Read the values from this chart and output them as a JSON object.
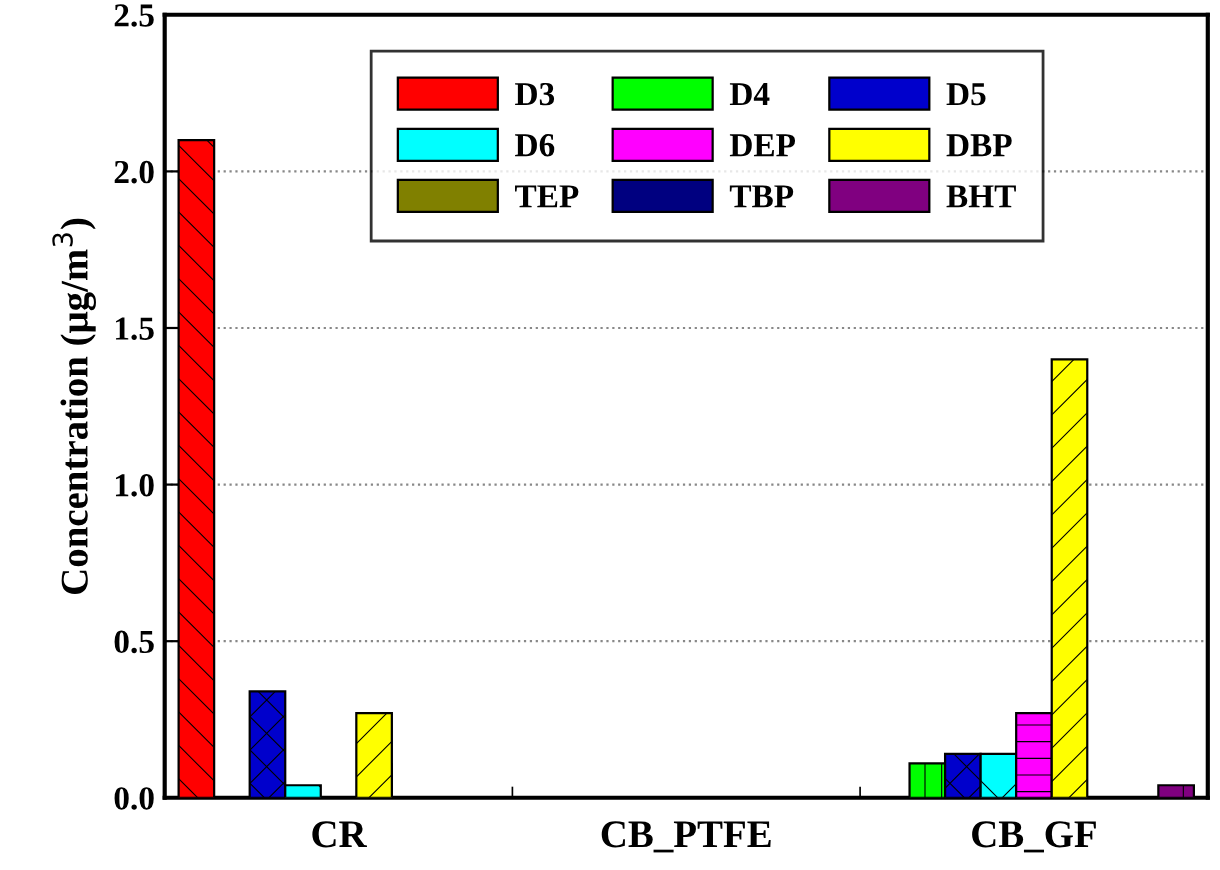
{
  "chart_data": {
    "type": "bar",
    "ylabel": "Concentration (μg/m$^{3}$)",
    "categories": [
      "CR",
      "CB_PTFE",
      "CB_GF"
    ],
    "series": [
      {
        "name": "D3",
        "color": "#ff0000",
        "values": [
          2.1,
          0,
          0
        ]
      },
      {
        "name": "D4",
        "color": "#00ff00",
        "values": [
          0,
          0,
          0.11
        ]
      },
      {
        "name": "D5",
        "color": "#0000cc",
        "values": [
          0.34,
          0,
          0.14
        ]
      },
      {
        "name": "D6",
        "color": "#00ffff",
        "values": [
          0.04,
          0,
          0.14
        ]
      },
      {
        "name": "DEP",
        "color": "#ff00ff",
        "values": [
          0,
          0,
          0.27
        ]
      },
      {
        "name": "DBP",
        "color": "#ffff00",
        "values": [
          0.27,
          0,
          1.4
        ]
      },
      {
        "name": "TEP",
        "color": "#808000",
        "values": [
          0,
          0,
          0
        ]
      },
      {
        "name": "TBP",
        "color": "#000080",
        "values": [
          0,
          0,
          0
        ]
      },
      {
        "name": "BHT",
        "color": "#800080",
        "values": [
          0,
          0,
          0.04
        ]
      }
    ],
    "ylim": [
      0,
      2.5
    ],
    "yticks": [
      {
        "value": 0,
        "label": "0.0"
      },
      {
        "value": 0.5,
        "label": "0.5"
      },
      {
        "value": 1,
        "label": "1.0"
      },
      {
        "value": 1.5,
        "label": "1.5"
      },
      {
        "value": 2,
        "label": "2.0"
      },
      {
        "value": 2.5,
        "label": "2.5"
      }
    ],
    "grid": "y",
    "legend": "top"
  }
}
